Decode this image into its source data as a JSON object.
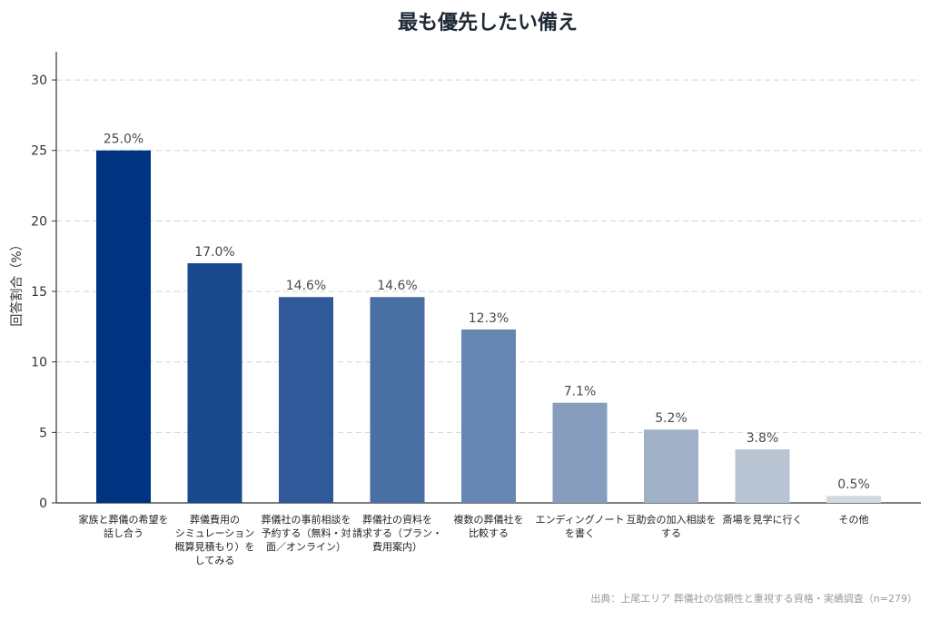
{
  "chart_data": {
    "type": "bar",
    "title": "最も優先したい備え",
    "ylabel": "回答割合（%）",
    "xlabel": "",
    "ylim": [
      0,
      32
    ],
    "yticks": [
      0,
      5,
      10,
      15,
      20,
      25,
      30
    ],
    "grid": true,
    "categories": [
      [
        "家族と葬儀の希望を",
        "話し合う"
      ],
      [
        "葬儀費用の",
        "シミュレーション",
        "概算見積もり）を",
        "してみる"
      ],
      [
        "葬儀社の事前相談を",
        "予約する（無料・対",
        "面／オンライン）"
      ],
      [
        "葬儀社の資料を",
        "請求する（プラン・",
        "費用案内）"
      ],
      [
        "複数の葬儀社を",
        "比較する"
      ],
      [
        "エンディングノート",
        "を書く"
      ],
      [
        "互助会の加入相談を",
        "する"
      ],
      [
        "斎場を見学に行く"
      ],
      [
        "その他"
      ]
    ],
    "values": [
      25.0,
      17.0,
      14.6,
      14.6,
      12.3,
      7.1,
      5.2,
      3.8,
      0.5
    ],
    "value_labels": [
      "25.0%",
      "17.0%",
      "14.6%",
      "14.6%",
      "12.3%",
      "7.1%",
      "5.2%",
      "3.8%",
      "0.5%"
    ],
    "colors": [
      "#003380",
      "#1a4a8e",
      "#30599a",
      "#4a6fa3",
      "#6886b2",
      "#869dbd",
      "#a0b0c7",
      "#b8c4d2",
      "#d3d9e1"
    ],
    "source": "出典：上尾エリア 葬儀社の信頼性と重視する資格・実績調査（n=279）"
  }
}
